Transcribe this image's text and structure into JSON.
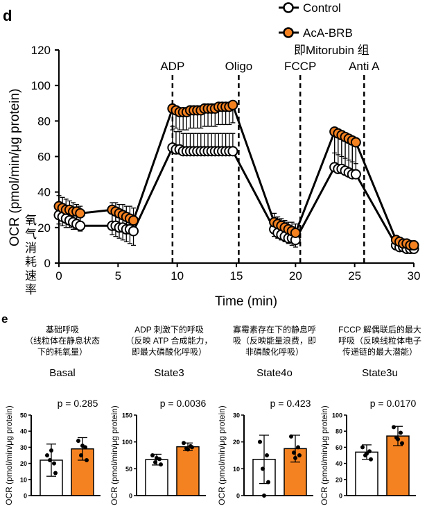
{
  "panel_d": {
    "letter": "d",
    "legend": [
      "Control",
      "AcA-BRB",
      "即Mitorubin 组"
    ],
    "ylabel": "OCR (pmol/min/μg protein)",
    "ylabel_cn": [
      "氧",
      "气",
      "消",
      "耗",
      "速",
      "率"
    ],
    "xlabel": "Time (min)",
    "injections": [
      "ADP",
      "Oligo",
      "FCCP",
      "Anti A"
    ]
  },
  "panel_e": {
    "letter": "e",
    "ylabel": "OCR (pmol/min/μg protein)"
  },
  "colors": {
    "control_fill": "#ffffff",
    "aca_fill": "#f58220",
    "line": "#000000"
  },
  "chart_data": [
    {
      "type": "line",
      "xlabel": "Time (min)",
      "ylabel": "OCR (pmol/min/μg protein)",
      "xlim": [
        0,
        30
      ],
      "ylim": [
        0,
        120
      ],
      "xticks": [
        0,
        5,
        10,
        15,
        20,
        25,
        30
      ],
      "yticks": [
        0,
        20,
        40,
        60,
        80,
        100,
        120
      ],
      "injections": [
        {
          "label": "ADP",
          "x": 9.6
        },
        {
          "label": "Oligo",
          "x": 15.2
        },
        {
          "label": "FCCP",
          "x": 20.4
        },
        {
          "label": "Anti A",
          "x": 25.8
        }
      ],
      "series": [
        {
          "name": "Control",
          "segments": [
            {
              "x": [
                0,
                0.3,
                0.6,
                0.9,
                1.2,
                1.5,
                1.8
              ],
              "y": [
                27,
                26,
                25,
                24,
                23,
                22,
                21
              ],
              "err": 11
            },
            {
              "x": [
                4.5,
                4.8,
                5.1,
                5.4,
                5.7,
                6.0,
                6.3
              ],
              "y": [
                21,
                21,
                20,
                20,
                19,
                19,
                18
              ],
              "err": 13
            },
            {
              "x": [
                9.6,
                9.9,
                10.2,
                10.5,
                10.8,
                11.1,
                11.4,
                11.7,
                12.0,
                12.3,
                12.6,
                12.9,
                13.2,
                13.5,
                13.8,
                14.1,
                14.4,
                14.7
              ],
              "y": [
                65,
                64,
                64,
                63,
                63,
                63,
                63,
                63,
                63,
                63,
                63,
                63,
                63,
                63,
                63,
                63,
                63,
                63
              ],
              "err": 10
            },
            {
              "x": [
                18.2,
                18.5,
                18.8,
                19.1,
                19.4,
                19.7,
                20.0
              ],
              "y": [
                19,
                17,
                16,
                15,
                14,
                14,
                13
              ],
              "err": 9
            },
            {
              "x": [
                23.3,
                23.6,
                23.9,
                24.2,
                24.5,
                24.8,
                25.1
              ],
              "y": [
                54,
                53,
                53,
                52,
                51,
                50,
                50
              ],
              "err": 18
            },
            {
              "x": [
                28.5,
                28.8,
                29.1,
                29.4,
                29.7,
                30.0
              ],
              "y": [
                10,
                9,
                9,
                8,
                8,
                8
              ],
              "err": 4
            }
          ]
        },
        {
          "name": "AcA-BRB",
          "segments": [
            {
              "x": [
                0,
                0.3,
                0.6,
                0.9,
                1.2,
                1.5,
                1.8
              ],
              "y": [
                32,
                31,
                30,
                30,
                29,
                29,
                28
              ],
              "err": 10
            },
            {
              "x": [
                4.5,
                4.8,
                5.1,
                5.4,
                5.7,
                6.0,
                6.3
              ],
              "y": [
                30,
                29,
                28,
                27,
                26,
                25,
                24
              ],
              "err": 14
            },
            {
              "x": [
                9.6,
                9.9,
                10.2,
                10.5,
                10.8,
                11.1,
                11.4,
                11.7,
                12.0,
                12.3,
                12.6,
                12.9,
                13.2,
                13.5,
                13.8,
                14.1,
                14.4,
                14.7
              ],
              "y": [
                87,
                86,
                85,
                85,
                85,
                86,
                86,
                86,
                86,
                87,
                87,
                87,
                87,
                88,
                88,
                88,
                88,
                89
              ],
              "err": 10
            },
            {
              "x": [
                18.2,
                18.5,
                18.8,
                19.1,
                19.4,
                19.7,
                20.0
              ],
              "y": [
                23,
                22,
                21,
                20,
                19,
                18,
                17
              ],
              "err": 8
            },
            {
              "x": [
                23.3,
                23.6,
                23.9,
                24.2,
                24.5,
                24.8,
                25.1
              ],
              "y": [
                74,
                73,
                72,
                71,
                70,
                69,
                68
              ],
              "err": 12
            },
            {
              "x": [
                28.5,
                28.8,
                29.1,
                29.4,
                29.7,
                30.0
              ],
              "y": [
                13,
                12,
                11,
                11,
                10,
                10
              ],
              "err": 4
            }
          ]
        }
      ]
    },
    {
      "type": "bar",
      "title": "Basal",
      "description": [
        "基础呼吸",
        "（线粒体在静息状态",
        "下的耗氧量）"
      ],
      "ylabel": "OCR (pmol/min/μg protein)",
      "ylim": [
        0,
        50
      ],
      "yticks": [
        0,
        10,
        20,
        30,
        40,
        50
      ],
      "p_value": "p = 0.285",
      "categories": [
        "Control",
        "AcA-BRB"
      ],
      "values": [
        22,
        29
      ],
      "sd": [
        10,
        7
      ],
      "points": [
        [
          25,
          20,
          22,
          14,
          28
        ],
        [
          34,
          30,
          25,
          22,
          31
        ]
      ]
    },
    {
      "type": "bar",
      "title": "State3",
      "description": [
        "ADP 刺激下的呼吸",
        "（反映 ATP 合成能力，",
        "即最大磷酸化呼吸）"
      ],
      "ylabel": "OCR (pmol/min/μg protein)",
      "ylim": [
        0,
        150
      ],
      "yticks": [
        0,
        50,
        100,
        150
      ],
      "p_value": "p = 0.0036",
      "categories": [
        "Control",
        "AcA-BRB"
      ],
      "values": [
        67,
        91
      ],
      "sd": [
        10,
        7
      ],
      "points": [
        [
          75,
          68,
          62,
          58,
          70
        ],
        [
          98,
          92,
          88,
          90,
          86
        ]
      ]
    },
    {
      "type": "bar",
      "title": "State4o",
      "description": [
        "寡霉素存在下的静息呼",
        "吸（反映能量浪费，即",
        "非磷酸化呼吸）"
      ],
      "ylabel": "OCR (pmol/min/μg protein)",
      "ylim": [
        0,
        30
      ],
      "yticks": [
        0,
        10,
        20,
        30
      ],
      "p_value": "p = 0.423",
      "categories": [
        "Control",
        "AcA-BRB"
      ],
      "values": [
        13.5,
        17.5
      ],
      "sd": [
        9,
        5
      ],
      "points": [
        [
          20,
          15,
          10,
          5,
          0
        ],
        [
          22,
          18,
          16,
          15,
          14
        ]
      ]
    },
    {
      "type": "bar",
      "title": "State3u",
      "description": [
        "FCCP 解偶联后的最大",
        "呼吸（反映线粒体电子",
        "传递链的最大潜能）"
      ],
      "ylabel": "OCR (pmol/min/μg protein)",
      "ylim": [
        0,
        100
      ],
      "yticks": [
        0,
        20,
        40,
        60,
        80,
        100
      ],
      "p_value": "p = 0.0170",
      "categories": [
        "Control",
        "AcA-BRB"
      ],
      "values": [
        54,
        74
      ],
      "sd": [
        9,
        12
      ],
      "points": [
        [
          60,
          55,
          50,
          45,
          52
        ],
        [
          85,
          78,
          72,
          65,
          70
        ]
      ]
    }
  ]
}
